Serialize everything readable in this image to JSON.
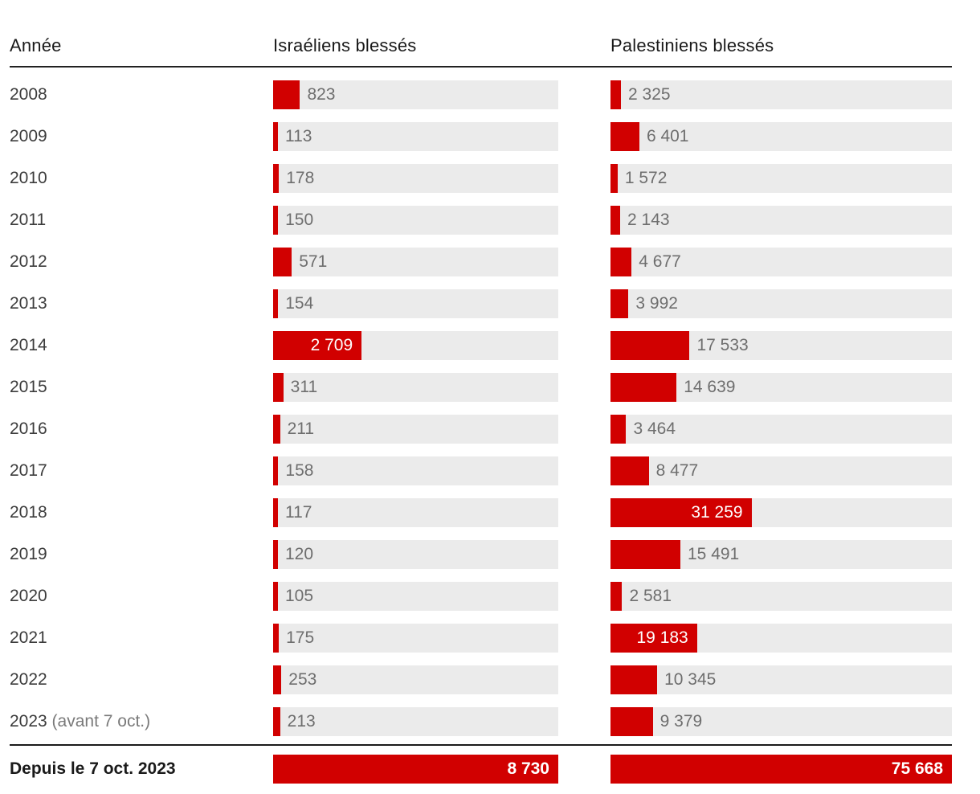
{
  "chart_data": {
    "type": "bar",
    "orientation": "horizontal",
    "columns": [
      "Année",
      "Israéliens blessés",
      "Palestiniens blessés"
    ],
    "bar_color": "#d10000",
    "track_color": "#ebebeb",
    "value_label_color": "#6e6e6e",
    "inside_label_color": "#ffffff",
    "israeli_axis_max": 8730,
    "palestinian_axis_max": 75668,
    "legend_position": "none",
    "grid": false,
    "rows": [
      {
        "label": "2008",
        "label_suffix": "",
        "israeli_value": 823,
        "israeli_display": "823",
        "israeli_label_inside": false,
        "palestinian_value": 2325,
        "palestinian_display": "2 325",
        "palestinian_label_inside": false,
        "emphasis": false
      },
      {
        "label": "2009",
        "label_suffix": "",
        "israeli_value": 113,
        "israeli_display": "113",
        "israeli_label_inside": false,
        "palestinian_value": 6401,
        "palestinian_display": "6 401",
        "palestinian_label_inside": false,
        "emphasis": false
      },
      {
        "label": "2010",
        "label_suffix": "",
        "israeli_value": 178,
        "israeli_display": "178",
        "israeli_label_inside": false,
        "palestinian_value": 1572,
        "palestinian_display": "1 572",
        "palestinian_label_inside": false,
        "emphasis": false
      },
      {
        "label": "2011",
        "label_suffix": "",
        "israeli_value": 150,
        "israeli_display": "150",
        "israeli_label_inside": false,
        "palestinian_value": 2143,
        "palestinian_display": "2 143",
        "palestinian_label_inside": false,
        "emphasis": false
      },
      {
        "label": "2012",
        "label_suffix": "",
        "israeli_value": 571,
        "israeli_display": "571",
        "israeli_label_inside": false,
        "palestinian_value": 4677,
        "palestinian_display": "4 677",
        "palestinian_label_inside": false,
        "emphasis": false
      },
      {
        "label": "2013",
        "label_suffix": "",
        "israeli_value": 154,
        "israeli_display": "154",
        "israeli_label_inside": false,
        "palestinian_value": 3992,
        "palestinian_display": "3 992",
        "palestinian_label_inside": false,
        "emphasis": false
      },
      {
        "label": "2014",
        "label_suffix": "",
        "israeli_value": 2709,
        "israeli_display": "2 709",
        "israeli_label_inside": true,
        "palestinian_value": 17533,
        "palestinian_display": "17 533",
        "palestinian_label_inside": false,
        "emphasis": false
      },
      {
        "label": "2015",
        "label_suffix": "",
        "israeli_value": 311,
        "israeli_display": "311",
        "israeli_label_inside": false,
        "palestinian_value": 14639,
        "palestinian_display": "14 639",
        "palestinian_label_inside": false,
        "emphasis": false
      },
      {
        "label": "2016",
        "label_suffix": "",
        "israeli_value": 211,
        "israeli_display": "211",
        "israeli_label_inside": false,
        "palestinian_value": 3464,
        "palestinian_display": "3 464",
        "palestinian_label_inside": false,
        "emphasis": false
      },
      {
        "label": "2017",
        "label_suffix": "",
        "israeli_value": 158,
        "israeli_display": "158",
        "israeli_label_inside": false,
        "palestinian_value": 8477,
        "palestinian_display": "8 477",
        "palestinian_label_inside": false,
        "emphasis": false
      },
      {
        "label": "2018",
        "label_suffix": "",
        "israeli_value": 117,
        "israeli_display": "117",
        "israeli_label_inside": false,
        "palestinian_value": 31259,
        "palestinian_display": "31 259",
        "palestinian_label_inside": true,
        "emphasis": false
      },
      {
        "label": "2019",
        "label_suffix": "",
        "israeli_value": 120,
        "israeli_display": "120",
        "israeli_label_inside": false,
        "palestinian_value": 15491,
        "palestinian_display": "15 491",
        "palestinian_label_inside": false,
        "emphasis": false
      },
      {
        "label": "2020",
        "label_suffix": "",
        "israeli_value": 105,
        "israeli_display": "105",
        "israeli_label_inside": false,
        "palestinian_value": 2581,
        "palestinian_display": "2 581",
        "palestinian_label_inside": false,
        "emphasis": false
      },
      {
        "label": "2021",
        "label_suffix": "",
        "israeli_value": 175,
        "israeli_display": "175",
        "israeli_label_inside": false,
        "palestinian_value": 19183,
        "palestinian_display": "19 183",
        "palestinian_label_inside": true,
        "emphasis": false
      },
      {
        "label": "2022",
        "label_suffix": "",
        "israeli_value": 253,
        "israeli_display": "253",
        "israeli_label_inside": false,
        "palestinian_value": 10345,
        "palestinian_display": "10 345",
        "palestinian_label_inside": false,
        "emphasis": false
      },
      {
        "label": "2023",
        "label_suffix": " (avant 7 oct.)",
        "israeli_value": 213,
        "israeli_display": "213",
        "israeli_label_inside": false,
        "palestinian_value": 9379,
        "palestinian_display": "9 379",
        "palestinian_label_inside": false,
        "emphasis": false
      },
      {
        "label": "Depuis le 7 oct. 2023",
        "label_suffix": "",
        "israeli_value": 8730,
        "israeli_display": "8 730",
        "israeli_label_inside": true,
        "palestinian_value": 75668,
        "palestinian_display": "75 668",
        "palestinian_label_inside": true,
        "emphasis": true
      }
    ]
  }
}
